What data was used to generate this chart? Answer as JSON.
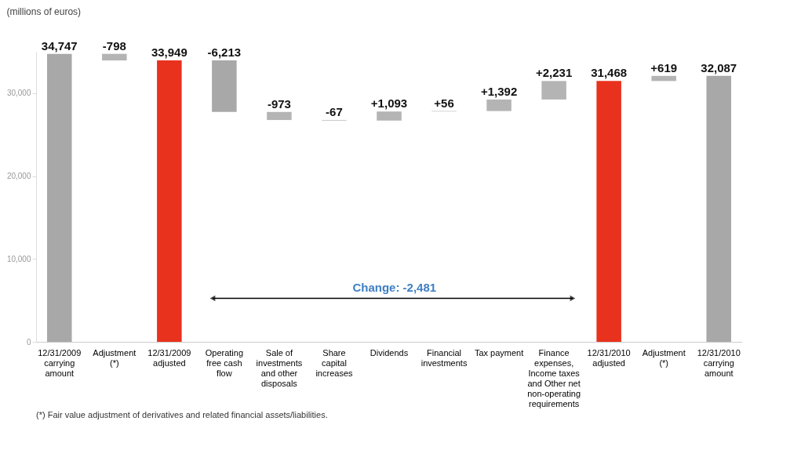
{
  "chart_data": {
    "type": "bar",
    "ylabel": "(millions of euros)",
    "categories": [
      "12/31/2009\ncarrying\namount",
      "Adjustment\n(*)",
      "12/31/2009\nadjusted",
      "Operating\nfree cash\nflow",
      "Sale of\ninvestments\nand other\ndisposals",
      "Share\ncapital\nincreases",
      "Dividends",
      "Financial\ninvestments",
      "Tax payment",
      "Finance\nexpenses,\nIncome taxes\nand Other net\nnon-operating\nrequirements",
      "12/31/2010\nadjusted",
      "Adjustment\n(*)",
      "12/31/2010\ncarrying\namount"
    ],
    "values": [
      34747,
      -798,
      33949,
      -6213,
      -973,
      -67,
      1093,
      56,
      1392,
      2231,
      31468,
      619,
      32087
    ],
    "base": [
      0,
      34747,
      0,
      33949,
      27736,
      26763,
      26696,
      27789,
      27845,
      29237,
      0,
      31468,
      0
    ],
    "ylim": [
      0,
      35000
    ],
    "yticks": [
      0,
      {
        "value": 10000,
        "label": "10,000"
      },
      {
        "value": 20000,
        "label": "20,000"
      },
      {
        "value": 30000,
        "label": "30,000"
      }
    ],
    "colors": [
      "#a8a8a8",
      "#b4b4b4",
      "#e8321e",
      "#a8a8a8",
      "#b4b4b4",
      "#b4b4b4",
      "#b4b4b4",
      "#b4b4b4",
      "#b4b4b4",
      "#b4b4b4",
      "#e8321e",
      "#b4b4b4",
      "#a8a8a8"
    ],
    "value_labels": [
      "34,747",
      "-798",
      "33,949",
      "-6,213",
      "-973",
      "-67",
      "+1,093",
      "+56",
      "+1,392",
      "+2,231",
      "31,468",
      "+619",
      "32,087"
    ],
    "annotations": [
      "Change: -2,481",
      "(*) Fair value adjustment of derivatives and related financial assets/liabilities."
    ]
  }
}
